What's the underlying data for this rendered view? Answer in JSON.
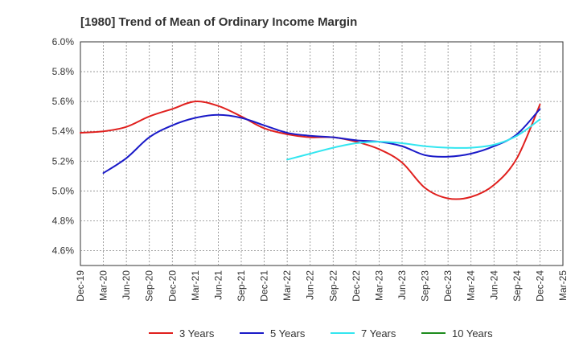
{
  "chart_data": {
    "type": "line",
    "title": "[1980]  Trend of Mean of Ordinary Income Margin",
    "xlabel": "",
    "ylabel": "",
    "x_tick_labels": [
      "Dec-19",
      "Mar-20",
      "Jun-20",
      "Sep-20",
      "Dec-20",
      "Mar-21",
      "Jun-21",
      "Sep-21",
      "Dec-21",
      "Mar-22",
      "Jun-22",
      "Sep-22",
      "Dec-22",
      "Mar-23",
      "Jun-23",
      "Sep-23",
      "Dec-23",
      "Mar-24",
      "Jun-24",
      "Sep-24",
      "Dec-24",
      "Mar-25"
    ],
    "y_tick_labels": [
      "4.6%",
      "4.8%",
      "5.0%",
      "5.2%",
      "5.4%",
      "5.6%",
      "5.8%",
      "6.0%"
    ],
    "y_ticks": [
      4.6,
      4.8,
      5.0,
      5.2,
      5.4,
      5.6,
      5.8,
      6.0
    ],
    "ylim": [
      4.5,
      6.0
    ],
    "grid": true,
    "legend_position": "bottom",
    "series": [
      {
        "name": "3 Years",
        "color": "#e0201e",
        "x": [
          "Dec-19",
          "Mar-20",
          "Jun-20",
          "Sep-20",
          "Dec-20",
          "Mar-21",
          "Jun-21",
          "Sep-21",
          "Dec-21",
          "Mar-22",
          "Jun-22",
          "Sep-22",
          "Dec-22",
          "Mar-23",
          "Jun-23",
          "Sep-23",
          "Dec-23",
          "Mar-24",
          "Jun-24",
          "Sep-24",
          "Dec-24"
        ],
        "values": [
          5.39,
          5.4,
          5.43,
          5.5,
          5.55,
          5.6,
          5.57,
          5.5,
          5.42,
          5.38,
          5.36,
          5.36,
          5.33,
          5.28,
          5.19,
          5.02,
          4.95,
          4.96,
          5.04,
          5.22,
          5.58
        ]
      },
      {
        "name": "5 Years",
        "color": "#1a1ac8",
        "x": [
          "Mar-20",
          "Jun-20",
          "Sep-20",
          "Dec-20",
          "Mar-21",
          "Jun-21",
          "Sep-21",
          "Dec-21",
          "Mar-22",
          "Jun-22",
          "Sep-22",
          "Dec-22",
          "Mar-23",
          "Jun-23",
          "Sep-23",
          "Dec-23",
          "Mar-24",
          "Jun-24",
          "Sep-24",
          "Dec-24"
        ],
        "values": [
          5.12,
          5.22,
          5.36,
          5.44,
          5.49,
          5.51,
          5.49,
          5.44,
          5.39,
          5.37,
          5.36,
          5.34,
          5.33,
          5.3,
          5.24,
          5.23,
          5.25,
          5.3,
          5.38,
          5.55
        ]
      },
      {
        "name": "7 Years",
        "color": "#33e6f0",
        "x": [
          "Mar-22",
          "Jun-22",
          "Sep-22",
          "Dec-22",
          "Mar-23",
          "Jun-23",
          "Sep-23",
          "Dec-23",
          "Mar-24",
          "Jun-24",
          "Sep-24",
          "Dec-24"
        ],
        "values": [
          5.21,
          5.25,
          5.29,
          5.32,
          5.33,
          5.32,
          5.3,
          5.29,
          5.29,
          5.31,
          5.37,
          5.48
        ]
      },
      {
        "name": "10 Years",
        "color": "#1e8c1e",
        "x": [],
        "values": []
      }
    ]
  }
}
